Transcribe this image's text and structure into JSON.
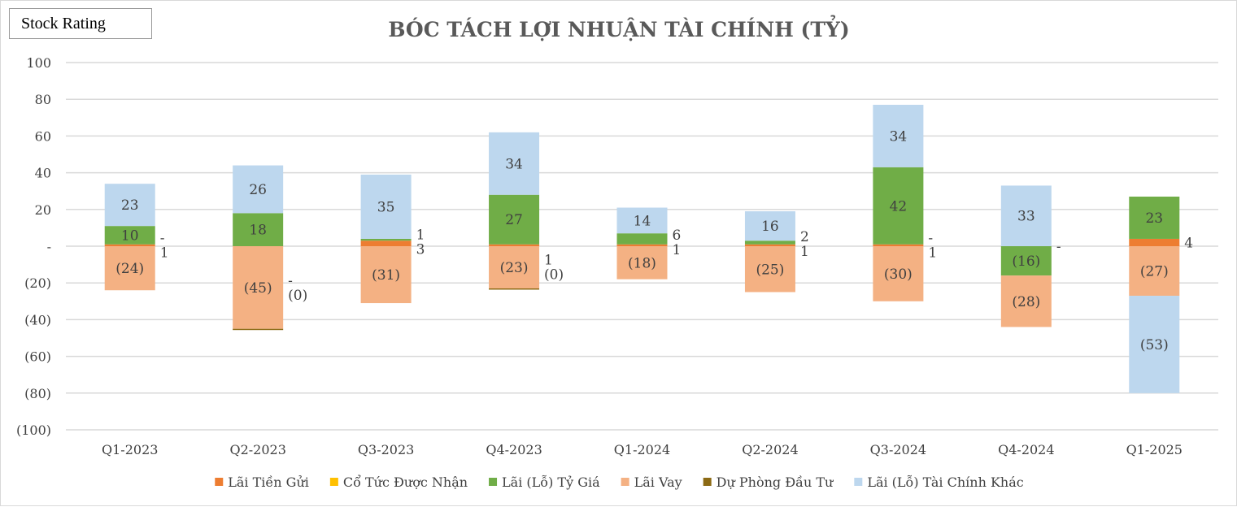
{
  "badge": "Stock Rating",
  "chart_data": {
    "type": "bar",
    "stacked": true,
    "title": "BÓC TÁCH LỢI NHUẬN TÀI CHÍNH (TỶ)",
    "xlabel": "",
    "ylabel": "",
    "ylim": [
      -100,
      100
    ],
    "yticks": [
      100,
      80,
      60,
      40,
      20,
      0,
      -20,
      -40,
      -60,
      -80,
      -100
    ],
    "ytick_labels": [
      "100",
      "80",
      "60",
      "40",
      "20",
      "-",
      "(20)",
      "(40)",
      "(60)",
      "(80)",
      "(100)"
    ],
    "grid": true,
    "legend_position": "bottom",
    "categories": [
      "Q1-2023",
      "Q2-2023",
      "Q3-2023",
      "Q4-2023",
      "Q1-2024",
      "Q2-2024",
      "Q3-2024",
      "Q4-2024",
      "Q1-2025"
    ],
    "series": [
      {
        "name": "Lãi Tiền Gửi",
        "color": "#ed7d31",
        "values": [
          1,
          0,
          3,
          1,
          1,
          1,
          1,
          0,
          4
        ],
        "labels": [
          "1",
          "",
          "3",
          "1",
          "1",
          "1",
          "1",
          "-",
          "4"
        ]
      },
      {
        "name": "Cổ Tức Được Nhận",
        "color": "#ffc000",
        "values": [
          0,
          0,
          0,
          0,
          0,
          0,
          0,
          0,
          0
        ],
        "labels": [
          "-",
          "-",
          "",
          "",
          "",
          "",
          "-",
          "",
          ""
        ]
      },
      {
        "name": "Lãi (Lỗ) Tỷ Giá",
        "color": "#70ad47",
        "values": [
          10,
          18,
          1,
          27,
          6,
          2,
          42,
          -16,
          23
        ],
        "labels": [
          "10",
          "18",
          "1",
          "27",
          "6",
          "2",
          "42",
          "(16)",
          "23"
        ]
      },
      {
        "name": "Lãi Vay",
        "color": "#f4b183",
        "values": [
          -24,
          -45,
          -31,
          -23,
          -18,
          -25,
          -30,
          -28,
          -27
        ],
        "labels": [
          "(24)",
          "(45)",
          "(31)",
          "(23)",
          "(18)",
          "(25)",
          "(30)",
          "(28)",
          "(27)"
        ]
      },
      {
        "name": "Dự Phòng Đầu Tư",
        "color": "#8c6a14",
        "values": [
          0,
          -0.2,
          0,
          -0.4,
          0,
          0,
          0,
          0,
          0
        ],
        "labels": [
          "",
          "(0)",
          "",
          "(0)",
          "",
          "",
          "",
          "",
          ""
        ]
      },
      {
        "name": "Lãi (Lỗ) Tài Chính Khác",
        "color": "#bdd7ee",
        "values": [
          23,
          26,
          35,
          34,
          14,
          16,
          34,
          33,
          -53
        ],
        "labels": [
          "23",
          "26",
          "35",
          "34",
          "14",
          "16",
          "34",
          "33",
          "(53)"
        ]
      }
    ]
  }
}
